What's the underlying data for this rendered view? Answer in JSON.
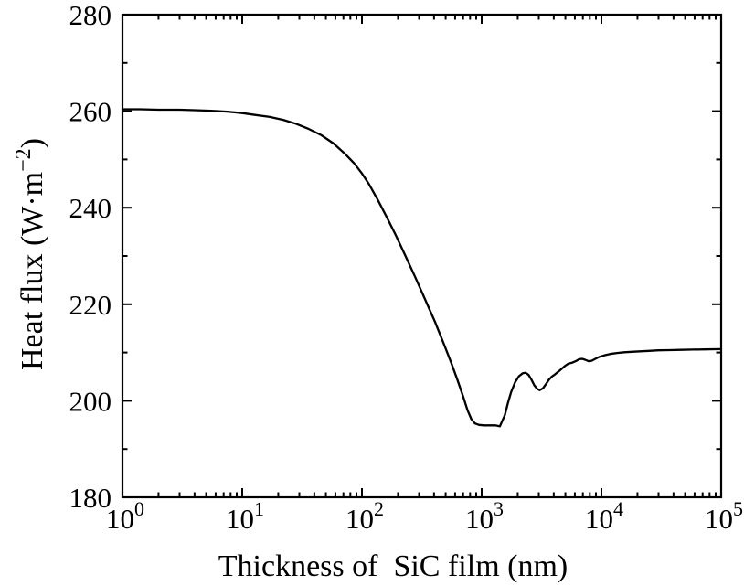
{
  "figure": {
    "background_color": "#ffffff",
    "frame_color": "#000000",
    "title": ""
  },
  "chart_data": {
    "type": "line",
    "title": "",
    "xlabel": "Thickness of  SiC film (nm)",
    "ylabel": "Heat flux (W·m⁻²)",
    "ylabel_parts": {
      "prefix": "Heat flux (W·m",
      "superscript": "−2",
      "suffix": ")"
    },
    "x_scale": "log",
    "x_log_range": [
      0,
      5
    ],
    "xlim": [
      1,
      100000
    ],
    "ylim": [
      180,
      280
    ],
    "x_tick_base": "10",
    "x_tick_exponents": [
      0,
      1,
      2,
      3,
      4,
      5
    ],
    "x_minor_ticks_per_decade": [
      2,
      3,
      4,
      5,
      6,
      7,
      8,
      9
    ],
    "y_ticks": [
      180,
      200,
      220,
      240,
      260,
      280
    ],
    "y_minor_ticks": [
      190,
      210,
      230,
      250,
      270
    ],
    "grid": false,
    "legend": null,
    "line_color": "#000000",
    "series": [
      {
        "name": "heat-flux-vs-thickness",
        "x": [
          1,
          1.4,
          2,
          3,
          4,
          5.5,
          7.5,
          10,
          13,
          17,
          22,
          28,
          36,
          46,
          58,
          72,
          86,
          100,
          115,
          135,
          160,
          190,
          230,
          280,
          340,
          410,
          490,
          560,
          630,
          700,
          760,
          820,
          880,
          950,
          1050,
          1170,
          1300,
          1420,
          1560,
          1660,
          1760,
          1900,
          2050,
          2200,
          2330,
          2460,
          2600,
          2750,
          2900,
          3050,
          3250,
          3450,
          3650,
          3850,
          4100,
          4400,
          4700,
          5000,
          5300,
          5700,
          6100,
          6500,
          6900,
          7300,
          7800,
          8300,
          8900,
          9600,
          10500,
          11800,
          13500,
          15500,
          18000,
          21000,
          25000,
          30000,
          37000,
          46000,
          58000,
          73000,
          100000
        ],
        "y": [
          260.4,
          260.4,
          260.3,
          260.3,
          260.2,
          260.1,
          259.9,
          259.6,
          259.2,
          258.8,
          258.2,
          257.4,
          256.3,
          255.0,
          253.3,
          251.2,
          249.2,
          247.1,
          244.8,
          241.7,
          238.2,
          234.5,
          230.1,
          225.5,
          220.8,
          216.2,
          211.4,
          207.7,
          204.2,
          200.9,
          198.1,
          196.2,
          195.3,
          195.0,
          194.9,
          194.9,
          194.9,
          194.7,
          197.0,
          199.6,
          201.8,
          203.8,
          205.1,
          205.7,
          205.8,
          205.4,
          204.4,
          203.2,
          202.5,
          202.2,
          202.6,
          203.5,
          204.4,
          205.0,
          205.5,
          206.1,
          206.7,
          207.3,
          207.7,
          207.9,
          208.2,
          208.6,
          208.7,
          208.5,
          208.2,
          208.3,
          208.7,
          209.1,
          209.4,
          209.7,
          209.9,
          210.05,
          210.15,
          210.25,
          210.35,
          210.45,
          210.5,
          210.55,
          210.6,
          210.65,
          210.7
        ]
      }
    ]
  }
}
